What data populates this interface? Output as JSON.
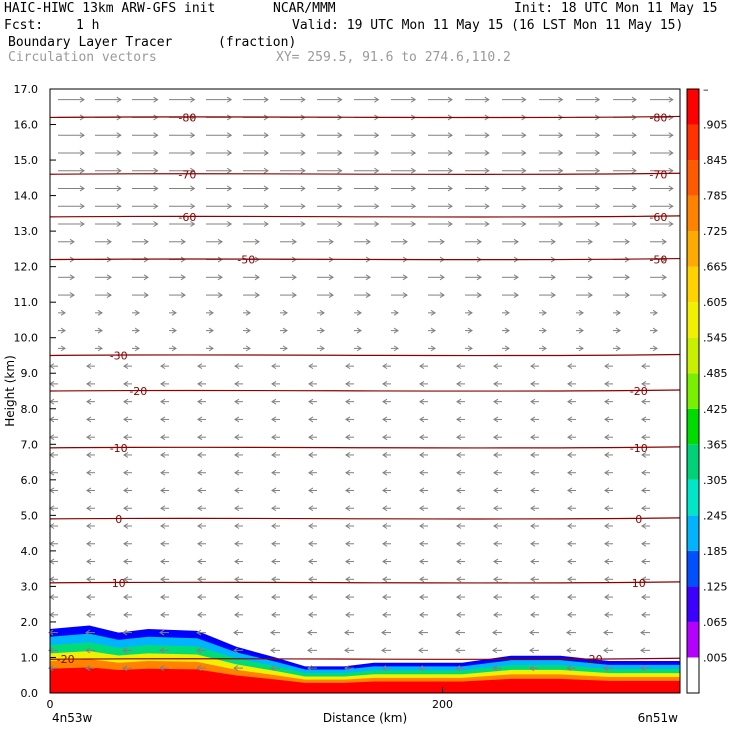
{
  "header": {
    "model_title": "HAIC-HIWC 13km ARW-GFS init",
    "org": "NCAR/MMM",
    "init_time": "Init: 18 UTC Mon 11 May 15",
    "fcst_label": "Fcst:",
    "fcst_value": "1 h",
    "valid_time": "Valid: 19 UTC Mon 11 May 15 (16 LST Mon 11 May 15)",
    "field_name": "Boundary Layer Tracer",
    "field_units": "(fraction)",
    "vector_label": "Circulation vectors",
    "xy_label": "XY= 259.5, 91.6 to 274.6,110.2"
  },
  "colors": {
    "contour": "#8b0000",
    "vector": "#808080",
    "colorbar": [
      "#ffffff",
      "#b400ff",
      "#3c00ff",
      "#0050ff",
      "#00b4ff",
      "#00e6c8",
      "#00d278",
      "#00dc00",
      "#78f000",
      "#c8f000",
      "#f0f000",
      "#ffd200",
      "#ffaa00",
      "#ff8200",
      "#ff5a00",
      "#ff3200",
      "#ff0000"
    ]
  },
  "chart_data": {
    "type": "cross-section",
    "xlabel": "Distance (km)",
    "ylabel": "Height (km)",
    "xlim": [
      0,
      321
    ],
    "ylim": [
      0,
      17
    ],
    "y_ticks": [
      "0.0",
      "1.0",
      "2.0",
      "3.0",
      "4.0",
      "5.0",
      "6.0",
      "7.0",
      "8.0",
      "9.0",
      "10.0",
      "11.0",
      "12.0",
      "13.0",
      "14.0",
      "15.0",
      "16.0",
      "17.0"
    ],
    "x_ticks": [
      {
        "value": 0,
        "label": "0"
      },
      {
        "value": 200,
        "label": "200"
      }
    ],
    "x_end_labels": {
      "left": "4n53w",
      "right": "6n51w"
    },
    "colorbar_labels": [
      ".005",
      ".065",
      ".125",
      ".185",
      ".245",
      ".305",
      ".365",
      ".425",
      ".485",
      ".545",
      ".605",
      ".665",
      ".725",
      ".785",
      ".845",
      ".905",
      "–"
    ],
    "contour_levels": [
      {
        "height": 16.2,
        "label": "-80",
        "label_x": [
          70,
          310
        ]
      },
      {
        "height": 14.6,
        "label": "-70",
        "label_x": [
          70,
          310
        ]
      },
      {
        "height": 13.4,
        "label": "-60",
        "label_x": [
          70,
          310
        ]
      },
      {
        "height": 12.2,
        "label": "-50",
        "label_x": [
          100,
          310
        ]
      },
      {
        "height": 9.5,
        "label": "-30",
        "label_x": [
          35
        ]
      },
      {
        "height": 8.5,
        "label": "-20",
        "label_x": [
          45,
          300
        ]
      },
      {
        "height": 6.9,
        "label": "-10",
        "label_x": [
          35,
          300
        ]
      },
      {
        "height": 4.9,
        "label": "0",
        "label_x": [
          35,
          300
        ]
      },
      {
        "height": 3.1,
        "label": "10",
        "label_x": [
          35,
          300
        ]
      },
      {
        "height": 0.95,
        "label": "-20",
        "label_x": [
          8
        ]
      },
      {
        "height": 0.95,
        "label": "20",
        "label_x": [
          278
        ]
      }
    ],
    "tracer_top_km": [
      [
        0,
        1.8
      ],
      [
        20,
        1.9
      ],
      [
        35,
        1.7
      ],
      [
        50,
        1.8
      ],
      [
        75,
        1.75
      ],
      [
        95,
        1.3
      ],
      [
        115,
        1.0
      ],
      [
        130,
        0.75
      ],
      [
        150,
        0.75
      ],
      [
        165,
        0.85
      ],
      [
        185,
        0.85
      ],
      [
        210,
        0.85
      ],
      [
        235,
        1.05
      ],
      [
        260,
        1.05
      ],
      [
        285,
        0.9
      ],
      [
        321,
        0.9
      ]
    ]
  }
}
